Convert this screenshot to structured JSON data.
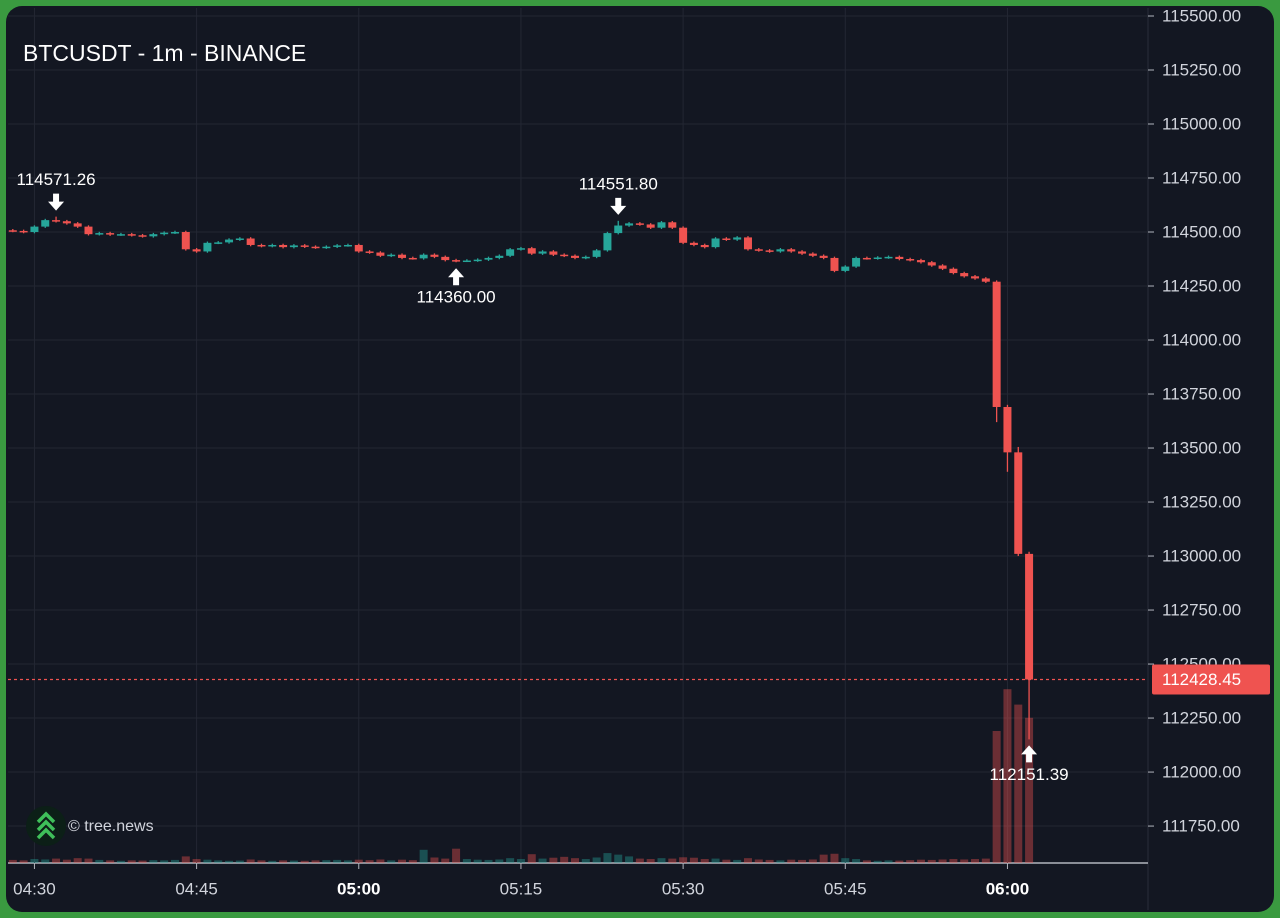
{
  "chart_data": {
    "type": "candlestick",
    "title": "BTCUSDT - 1m - BINANCE",
    "watermark": "© tree.news",
    "x": [
      "04:28",
      "04:29",
      "04:30",
      "04:31",
      "04:32",
      "04:33",
      "04:34",
      "04:35",
      "04:36",
      "04:37",
      "04:38",
      "04:39",
      "04:40",
      "04:41",
      "04:42",
      "04:43",
      "04:44",
      "04:45",
      "04:46",
      "04:47",
      "04:48",
      "04:49",
      "04:50",
      "04:51",
      "04:52",
      "04:53",
      "04:54",
      "04:55",
      "04:56",
      "04:57",
      "04:58",
      "04:59",
      "05:00",
      "05:01",
      "05:02",
      "05:03",
      "05:04",
      "05:05",
      "05:06",
      "05:07",
      "05:08",
      "05:09",
      "05:10",
      "05:11",
      "05:12",
      "05:13",
      "05:14",
      "05:15",
      "05:16",
      "05:17",
      "05:18",
      "05:19",
      "05:20",
      "05:21",
      "05:22",
      "05:23",
      "05:24",
      "05:25",
      "05:26",
      "05:27",
      "05:28",
      "05:29",
      "05:30",
      "05:31",
      "05:32",
      "05:33",
      "05:34",
      "05:35",
      "05:36",
      "05:37",
      "05:38",
      "05:39",
      "05:40",
      "05:41",
      "05:42",
      "05:43",
      "05:44",
      "05:45",
      "05:46",
      "05:47",
      "05:48",
      "05:49",
      "05:50",
      "05:51",
      "05:52",
      "05:53",
      "05:54",
      "05:55",
      "05:56",
      "05:57",
      "05:58",
      "05:59",
      "06:00",
      "06:01",
      "06:02"
    ],
    "open": [
      114508,
      114505,
      114500,
      114525,
      114555,
      114550,
      114540,
      114525,
      114490,
      114495,
      114488,
      114490,
      114485,
      114480,
      114490,
      114497,
      114500,
      114420,
      114410,
      114450,
      114452,
      114465,
      114470,
      114440,
      114435,
      114440,
      114430,
      114438,
      114432,
      114428,
      114432,
      114438,
      114440,
      114410,
      114405,
      114390,
      114395,
      114380,
      114378,
      114395,
      114385,
      114370,
      114365,
      114368,
      114372,
      114380,
      114390,
      114420,
      114425,
      114400,
      114410,
      114395,
      114390,
      114380,
      114385,
      114415,
      114495,
      114530,
      114540,
      114535,
      114520,
      114545,
      114520,
      114450,
      114440,
      114430,
      114470,
      114465,
      114475,
      114420,
      114415,
      114410,
      114420,
      114410,
      114400,
      114390,
      114380,
      114320,
      114340,
      114380,
      114378,
      114382,
      114385,
      114375,
      114370,
      114360,
      114345,
      114330,
      114310,
      114295,
      114285,
      114270,
      113690,
      113480,
      113010
    ],
    "high": [
      114514,
      114511,
      114531,
      114561,
      114571.26,
      114556,
      114546,
      114531,
      114501,
      114501,
      114496,
      114496,
      114491,
      114496,
      114503,
      114506,
      114506,
      114426,
      114456,
      114458,
      114471,
      114476,
      114476,
      114446,
      114446,
      114446,
      114444,
      114444,
      114438,
      114438,
      114444,
      114446,
      114446,
      114416,
      114411,
      114401,
      114401,
      114386,
      114401,
      114401,
      114391,
      114376,
      114374,
      114378,
      114386,
      114396,
      114426,
      114431,
      114431,
      114416,
      114416,
      114401,
      114396,
      114391,
      114421,
      114501,
      114551.8,
      114546,
      114546,
      114541,
      114551,
      114551,
      114526,
      114456,
      114446,
      114476,
      114476,
      114481,
      114481,
      114426,
      114421,
      114426,
      114426,
      114416,
      114406,
      114396,
      114386,
      114346,
      114386,
      114386,
      114388,
      114391,
      114391,
      114381,
      114376,
      114366,
      114351,
      114336,
      114316,
      114301,
      114291,
      114276,
      113700,
      113505,
      113020
    ],
    "low": [
      114499,
      114494,
      114494,
      114519,
      114544,
      114534,
      114519,
      114484,
      114484,
      114482,
      114482,
      114479,
      114474,
      114474,
      114484,
      114491,
      114414,
      114404,
      114404,
      114444,
      114446,
      114459,
      114434,
      114429,
      114429,
      114424,
      114424,
      114426,
      114422,
      114422,
      114426,
      114432,
      114404,
      114399,
      114384,
      114384,
      114374,
      114372,
      114372,
      114379,
      114364,
      114360,
      114361,
      114362,
      114366,
      114374,
      114384,
      114414,
      114394,
      114394,
      114389,
      114384,
      114374,
      114374,
      114379,
      114409,
      114489,
      114524,
      114529,
      114514,
      114514,
      114514,
      114444,
      114434,
      114424,
      114424,
      114459,
      114459,
      114414,
      114409,
      114404,
      114404,
      114404,
      114394,
      114384,
      114374,
      114314,
      114314,
      114334,
      114372,
      114372,
      114376,
      114369,
      114364,
      114354,
      114339,
      114324,
      114304,
      114289,
      114279,
      114264,
      113620,
      113390,
      113000,
      112151.39
    ],
    "close": [
      114505,
      114500,
      114525,
      114555,
      114550,
      114540,
      114525,
      114490,
      114495,
      114488,
      114490,
      114485,
      114480,
      114490,
      114497,
      114500,
      114420,
      114410,
      114450,
      114452,
      114465,
      114470,
      114440,
      114435,
      114440,
      114430,
      114438,
      114432,
      114428,
      114432,
      114438,
      114440,
      114410,
      114405,
      114390,
      114395,
      114380,
      114378,
      114395,
      114385,
      114370,
      114365,
      114368,
      114372,
      114380,
      114390,
      114420,
      114425,
      114400,
      114410,
      114395,
      114390,
      114380,
      114385,
      114415,
      114495,
      114530,
      114540,
      114535,
      114520,
      114545,
      114520,
      114450,
      114440,
      114430,
      114470,
      114465,
      114475,
      114420,
      114415,
      114410,
      114420,
      114410,
      114400,
      114390,
      114380,
      114320,
      114340,
      114380,
      114378,
      114382,
      114385,
      114375,
      114370,
      114360,
      114345,
      114330,
      114310,
      114295,
      114285,
      114270,
      113690,
      113480,
      113010,
      112428.45
    ],
    "volume": [
      14,
      12,
      18,
      16,
      20,
      15,
      22,
      20,
      14,
      12,
      10,
      12,
      11,
      13,
      12,
      14,
      30,
      18,
      15,
      12,
      10,
      11,
      16,
      12,
      10,
      12,
      11,
      10,
      12,
      13,
      14,
      12,
      15,
      13,
      16,
      12,
      15,
      13,
      60,
      25,
      20,
      65,
      18,
      15,
      14,
      16,
      22,
      18,
      40,
      20,
      24,
      28,
      22,
      18,
      25,
      45,
      38,
      30,
      20,
      18,
      22,
      20,
      26,
      24,
      18,
      20,
      15,
      14,
      22,
      16,
      14,
      12,
      15,
      14,
      16,
      38,
      42,
      22,
      18,
      12,
      10,
      12,
      11,
      13,
      15,
      14,
      16,
      18,
      16,
      18,
      20,
      600,
      790,
      720,
      660
    ],
    "vlim": [
      0,
      1000
    ],
    "up_color": "#26a69a",
    "down_color": "#ef5350",
    "annotations": [
      {
        "x": "04:32",
        "value": 114571.26,
        "label": "114571.26"
      },
      {
        "x": "05:09",
        "value": 114360,
        "label": "114360.00"
      },
      {
        "x": "05:24",
        "value": 114551.8,
        "label": "114551.80"
      },
      {
        "x": "06:02",
        "value": 112151.39,
        "label": "112151.39"
      }
    ],
    "xlim": [
      "04:27",
      "06:13"
    ],
    "xticks": [
      "04:30",
      "04:45",
      "05:00",
      "05:15",
      "05:30",
      "05:45",
      "06:00"
    ],
    "ylim": [
      111579,
      115537
    ],
    "yticks": [
      {
        "value": 111750,
        "label": "111750.00"
      },
      {
        "value": 112000,
        "label": "112000.00"
      },
      {
        "value": 112250,
        "label": "112250.00"
      },
      {
        "value": 112500,
        "label": "112500.00"
      },
      {
        "value": 112750,
        "label": "112750.00"
      },
      {
        "value": 113000,
        "label": "113000.00"
      },
      {
        "value": 113250,
        "label": "113250.00"
      },
      {
        "value": 113500,
        "label": "113500.00"
      },
      {
        "value": 113750,
        "label": "113750.00"
      },
      {
        "value": 114000,
        "label": "114000.00"
      },
      {
        "value": 114250,
        "label": "114250.00"
      },
      {
        "value": 114500,
        "label": "114500.00"
      },
      {
        "value": 114750,
        "label": "114750.00"
      },
      {
        "value": 115000,
        "label": "115000.00"
      },
      {
        "value": 115250,
        "label": "115250.00"
      },
      {
        "value": 115500,
        "label": "115500.00"
      }
    ],
    "grid": true
  }
}
